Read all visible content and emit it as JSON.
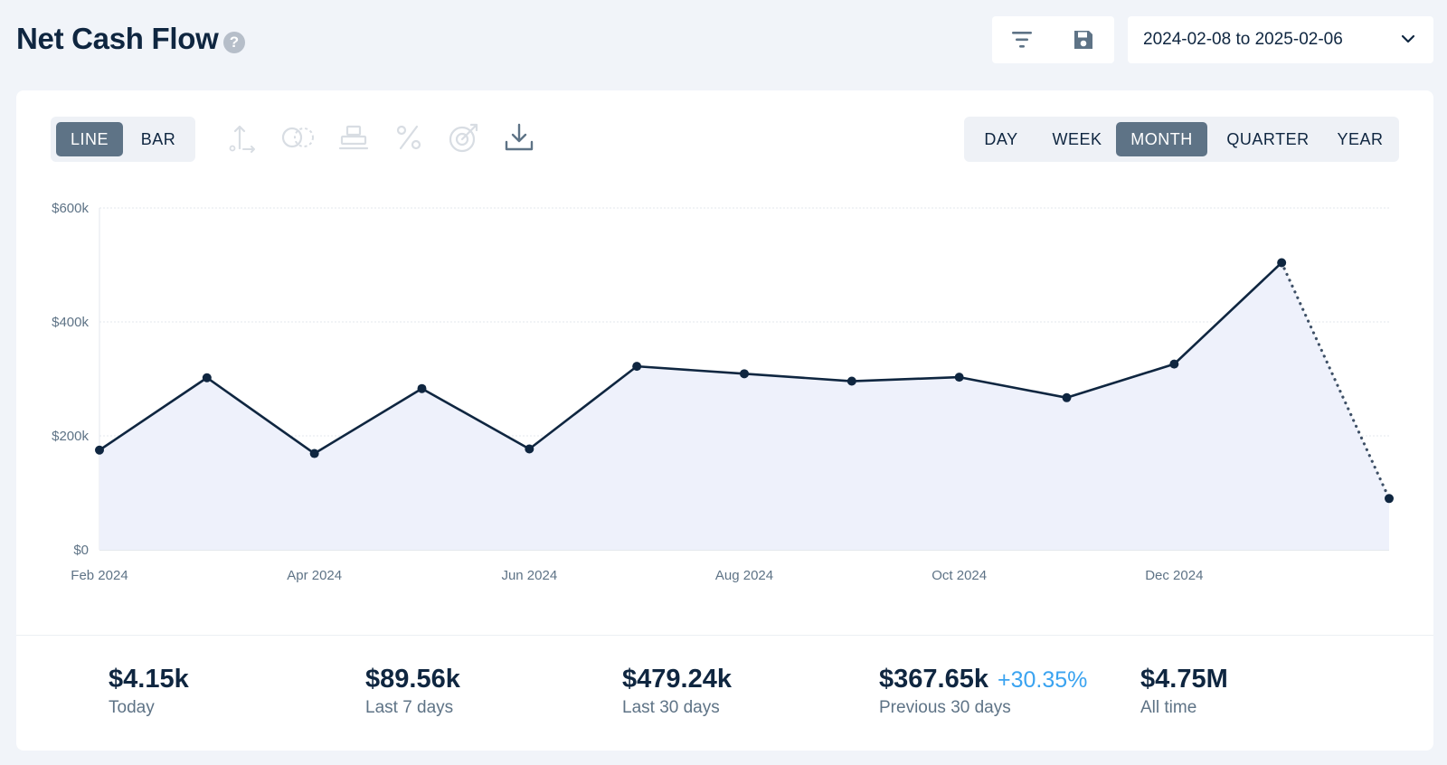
{
  "header": {
    "title": "Net Cash Flow",
    "help_icon": "?",
    "toolbox_icons": [
      "filter-icon",
      "save-icon"
    ],
    "date_range": "2024-02-08 to 2025-02-06"
  },
  "chart_type_toggle": {
    "options": [
      "LINE",
      "BAR"
    ],
    "selected": "LINE"
  },
  "chart_tools": [
    "axis-icon",
    "compare-icon",
    "stack-icon",
    "percent-icon",
    "target-icon",
    "download-icon"
  ],
  "granularity": {
    "options": [
      "DAY",
      "WEEK",
      "MONTH",
      "QUARTER",
      "YEAR"
    ],
    "selected": "MONTH"
  },
  "colors": {
    "line": "#0f2640",
    "area": "#eef1fb",
    "accent": "#5e7386",
    "positive_change": "#3aa3f0"
  },
  "chart_data": {
    "type": "line",
    "x": [
      "2024-02",
      "2024-03",
      "2024-04",
      "2024-05",
      "2024-06",
      "2024-07",
      "2024-08",
      "2024-09",
      "2024-10",
      "2024-11",
      "2024-12",
      "2025-01",
      "2025-02"
    ],
    "series": [
      {
        "values": [
          175000,
          302000,
          169000,
          283000,
          177000,
          322000,
          309000,
          296000,
          303000,
          267000,
          326000,
          504000,
          90000
        ]
      }
    ],
    "partial_last_point": true,
    "x_tick_labels": [
      "Feb 2024",
      "Apr 2024",
      "Jun 2024",
      "Aug 2024",
      "Oct 2024",
      "Dec 2024"
    ],
    "x_tick_indices": [
      0,
      2,
      4,
      6,
      8,
      10
    ],
    "y_ticks": [
      0,
      200000,
      400000,
      600000
    ],
    "y_tick_labels": [
      "$0",
      "$200k",
      "$400k",
      "$600k"
    ],
    "ylim": [
      0,
      600000
    ],
    "grid": true,
    "legend": "none"
  },
  "stats": [
    {
      "value": "$4.15k",
      "label": "Today"
    },
    {
      "value": "$89.56k",
      "label": "Last 7 days"
    },
    {
      "value": "$479.24k",
      "label": "Last 30 days"
    },
    {
      "value": "$367.65k",
      "change": "+30.35%",
      "label": "Previous 30 days"
    },
    {
      "value": "$4.75M",
      "label": "All time"
    }
  ]
}
